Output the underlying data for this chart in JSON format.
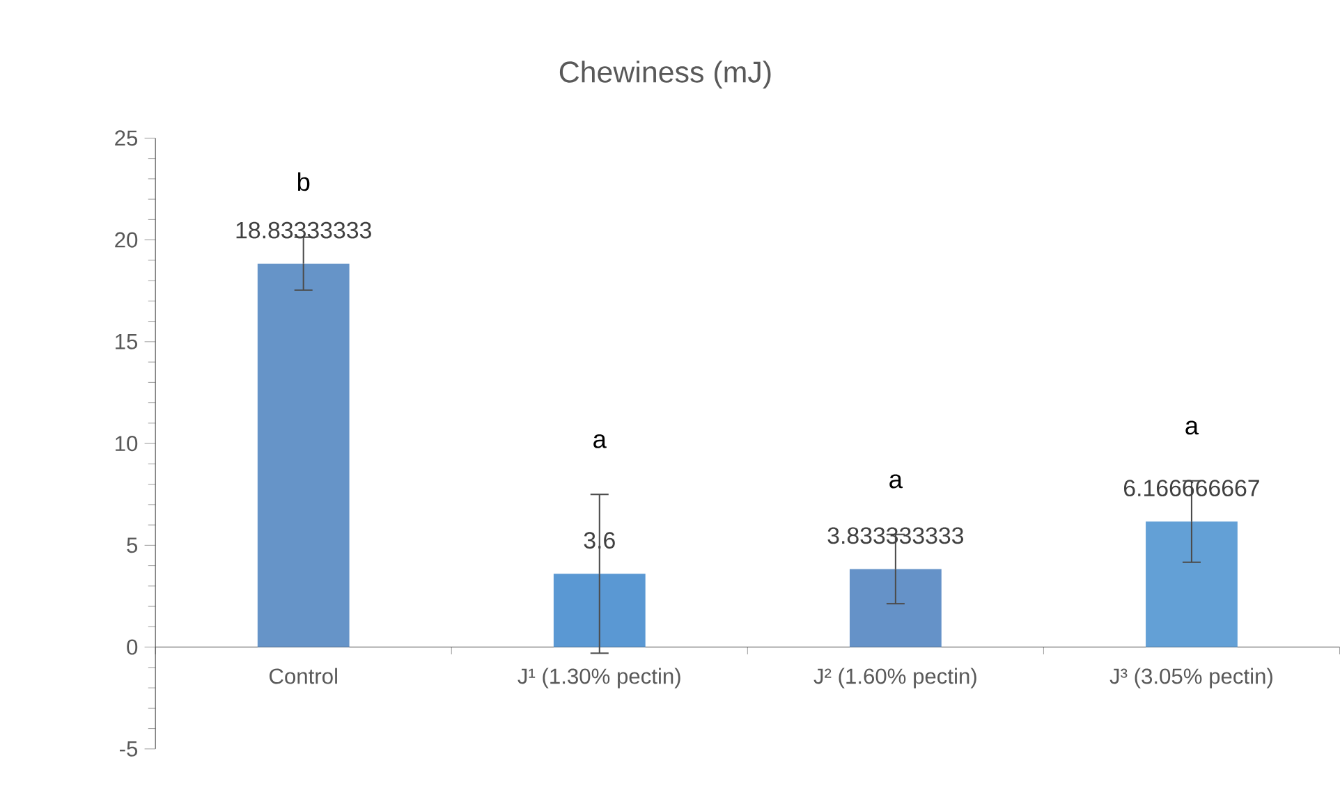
{
  "chart_data": {
    "type": "bar",
    "title": "Chewiness (mJ)",
    "categories": [
      "Control",
      "J¹ (1.30% pectin)",
      "J² (1.60% pectin)",
      "J³ (3.05% pectin)"
    ],
    "values": [
      18.83333333,
      3.6,
      3.833333333,
      6.166666667
    ],
    "errors": [
      1.3,
      3.9,
      1.7,
      2
    ],
    "colors": [
      "#6694c8",
      "#5a98d3",
      "#6592c8",
      "#63a0d6"
    ],
    "data_labels": true,
    "ylim": [
      -5,
      25
    ],
    "yticks": [
      -5,
      0,
      5,
      10,
      15,
      20,
      25
    ],
    "grid": false,
    "annotations": [
      "b",
      "a",
      "a",
      "a"
    ]
  }
}
